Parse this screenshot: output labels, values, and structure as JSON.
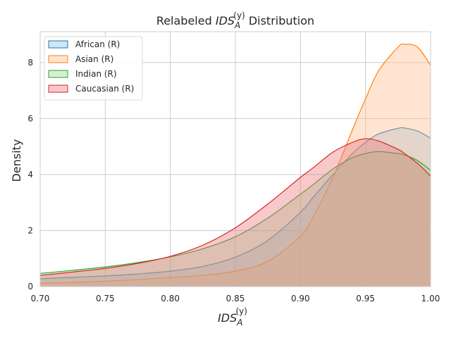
{
  "chart_data": {
    "type": "area",
    "title": {
      "prefix": "Relabeled ",
      "var": "IDS",
      "sub": "A",
      "sup": "(y)",
      "suffix": " Distribution"
    },
    "xlabel": {
      "var": "IDS",
      "sub": "A",
      "sup": "(y)"
    },
    "ylabel": "Density",
    "xlim": [
      0.7,
      1.0
    ],
    "ylim": [
      0,
      9.1
    ],
    "xticks": [
      "0.70",
      "0.75",
      "0.80",
      "0.85",
      "0.90",
      "0.95",
      "1.00"
    ],
    "yticks": [
      "0",
      "2",
      "4",
      "6",
      "8"
    ],
    "grid": true,
    "legend_position": "top-left",
    "x": [
      0.7,
      0.725,
      0.75,
      0.775,
      0.8,
      0.825,
      0.85,
      0.875,
      0.9,
      0.91,
      0.925,
      0.94,
      0.95,
      0.96,
      0.975,
      0.98,
      0.99,
      1.0
    ],
    "series": [
      {
        "name": "African (R)",
        "color": "#1f77b4",
        "fill": "rgba(140,190,225,0.4)",
        "values": [
          0.28,
          0.33,
          0.38,
          0.45,
          0.55,
          0.72,
          1.05,
          1.65,
          2.65,
          3.2,
          4.0,
          4.75,
          5.15,
          5.45,
          5.65,
          5.66,
          5.55,
          5.3
        ]
      },
      {
        "name": "Asian (R)",
        "color": "#ff7f0e",
        "fill": "rgba(255,190,140,0.4)",
        "values": [
          0.12,
          0.15,
          0.19,
          0.25,
          0.32,
          0.4,
          0.55,
          0.9,
          1.8,
          2.5,
          3.9,
          5.6,
          6.7,
          7.7,
          8.55,
          8.65,
          8.55,
          7.9
        ]
      },
      {
        "name": "Indian (R)",
        "color": "#2ca02c",
        "fill": "rgba(150,215,150,0.4)",
        "values": [
          0.47,
          0.58,
          0.7,
          0.86,
          1.06,
          1.35,
          1.78,
          2.45,
          3.3,
          3.65,
          4.2,
          4.6,
          4.75,
          4.82,
          4.75,
          4.7,
          4.5,
          4.15
        ]
      },
      {
        "name": "Caucasian (R)",
        "color": "#d62728",
        "fill": "rgba(235,120,125,0.4)",
        "values": [
          0.4,
          0.52,
          0.65,
          0.83,
          1.08,
          1.48,
          2.1,
          2.95,
          3.9,
          4.25,
          4.8,
          5.15,
          5.28,
          5.2,
          4.9,
          4.75,
          4.4,
          3.95
        ]
      }
    ]
  }
}
